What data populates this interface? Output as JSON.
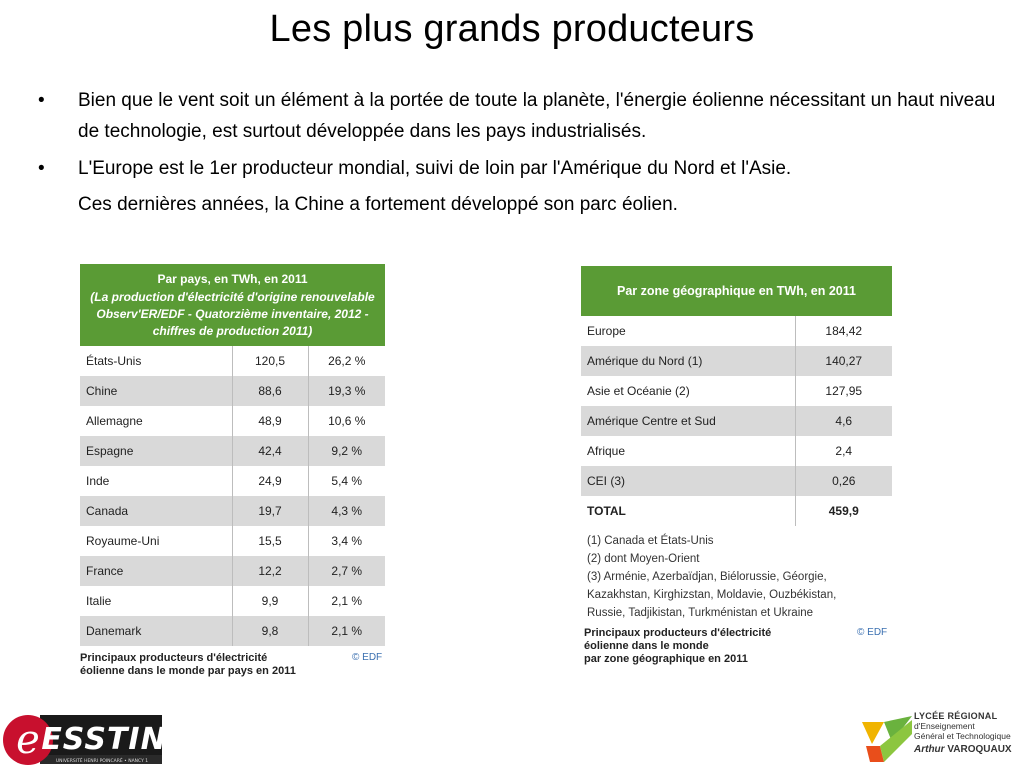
{
  "slide": {
    "title": "Les plus grands producteurs",
    "bullets": [
      {
        "dot": "•",
        "text": "Bien que le vent soit  un élément à la portée de toute la planète, l'énergie éolienne nécessitant un haut niveau de technologie, est surtout développée dans les pays industrialisés."
      },
      {
        "dot": "•",
        "text": "L'Europe est le 1er producteur mondial, suivi de loin par l'Amérique du Nord et l'Asie.",
        "continuation": "Ces dernières années, la Chine a fortement développé son parc éolien."
      }
    ]
  },
  "left_table": {
    "header_line1": "Par pays, en TWh, en 2011",
    "header_line2": "(La production d'électricité d'origine renouvelable Observ'ER/EDF - Quatorzième inventaire, 2012 - chiffres de production 2011)",
    "rows": [
      [
        "États-Unis",
        "120,5",
        "26,2 %"
      ],
      [
        "Chine",
        "88,6",
        "19,3 %"
      ],
      [
        "Allemagne",
        "48,9",
        "10,6 %"
      ],
      [
        "Espagne",
        "42,4",
        "9,2 %"
      ],
      [
        "Inde",
        "24,9",
        "5,4 %"
      ],
      [
        "Canada",
        "19,7",
        "4,3 %"
      ],
      [
        "Royaume-Uni",
        "15,5",
        "3,4 %"
      ],
      [
        "France",
        "12,2",
        "2,7 %"
      ],
      [
        "Italie",
        "9,9",
        "2,1 %"
      ],
      [
        "Danemark",
        "9,8",
        "2,1 %"
      ]
    ],
    "caption_line1": "Principaux producteurs d'électricité",
    "caption_line2": "éolienne dans le monde par pays en 2011",
    "credit": "© EDF"
  },
  "right_table": {
    "header": "Par zone géographique en TWh, en 2011",
    "rows": [
      [
        "Europe",
        "184,42"
      ],
      [
        "Amérique du Nord (1)",
        "140,27"
      ],
      [
        "Asie et Océanie (2)",
        "127,95"
      ],
      [
        "Amérique Centre et Sud",
        "4,6"
      ],
      [
        "Afrique",
        "2,4"
      ],
      [
        "CEI (3)",
        "0,26"
      ],
      [
        "TOTAL",
        "459,9"
      ]
    ],
    "notes": [
      "(1) Canada et États-Unis",
      "(2) dont Moyen-Orient",
      "(3) Arménie, Azerbaïdjan, Biélorussie, Géorgie,",
      "Kazakhstan, Kirghizstan, Moldavie, Ouzbékistan,",
      "Russie, Tadjikistan, Turkménistan et Ukraine"
    ],
    "caption_line1": "Principaux producteurs d'électricité",
    "caption_line2": "éolienne dans le monde",
    "caption_line3": "par zone géographique en 2011",
    "credit": "© EDF"
  },
  "logos": {
    "left_name": "ESSTIN",
    "left_subtext": "UNIVERSITÉ HENRI POINCARÉ • NANCY 1",
    "right_line1": "LYCÉE RÉGIONAL",
    "right_line2": "d'Enseignement",
    "right_line3": "Général et Technologique",
    "right_line4a": "Arthur",
    "right_line4b": "VAROQUAUX"
  },
  "colors": {
    "table_header_green": "#5a9b35",
    "row_alt_grey": "#d9d9d9",
    "edf_blue": "#3a6fb0",
    "esstin_red": "#c8102e"
  }
}
